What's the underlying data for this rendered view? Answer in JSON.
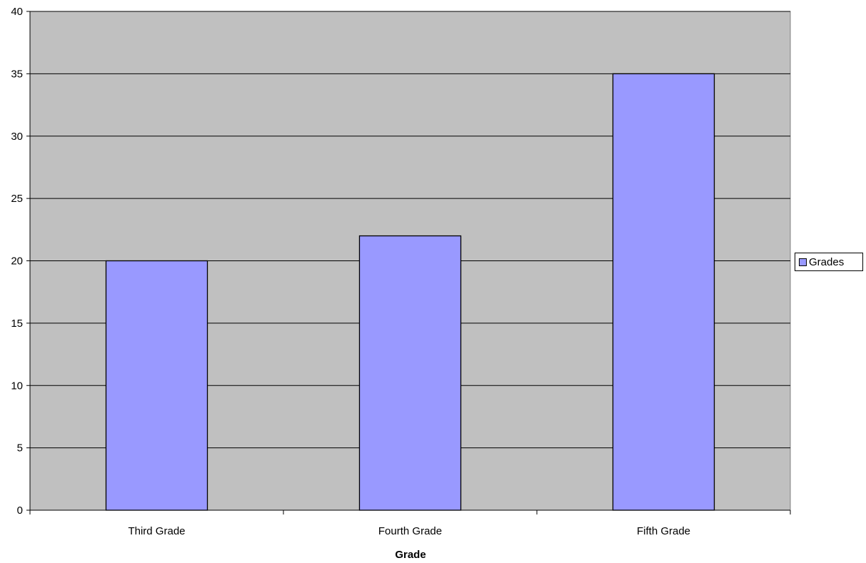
{
  "chart_data": {
    "type": "bar",
    "title": "",
    "xlabel": "Grade",
    "ylabel": "",
    "categories": [
      "Third Grade",
      "Fourth Grade",
      "Fifth Grade"
    ],
    "series": [
      {
        "name": "Grades",
        "values": [
          20,
          22,
          35
        ],
        "color": "#9999ff"
      }
    ],
    "ylim": [
      0,
      40
    ],
    "yticks": [
      0,
      5,
      10,
      15,
      20,
      25,
      30,
      35,
      40
    ],
    "grid": true,
    "legend_position": "right",
    "plot_background": "#c0c0c0"
  }
}
